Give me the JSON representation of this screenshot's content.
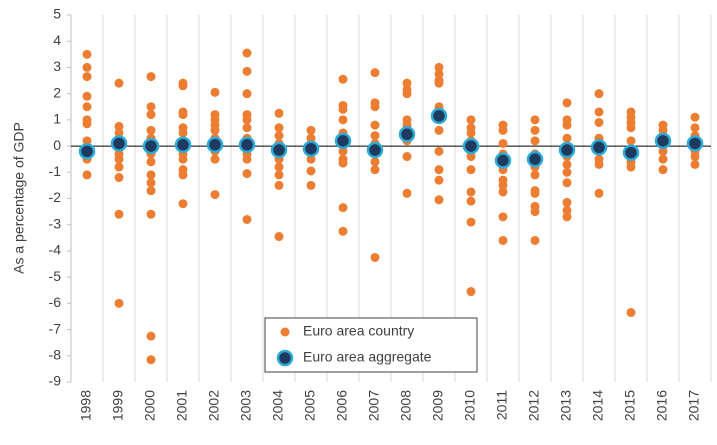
{
  "chart_data": {
    "type": "strip",
    "ylabel": "As a percentage of GDP",
    "categories": [
      "1998",
      "1999",
      "2000",
      "2001",
      "2002",
      "2003",
      "2004",
      "2005",
      "2006",
      "2007",
      "2008",
      "2009",
      "2010",
      "2011",
      "2012",
      "2013",
      "2014",
      "2015",
      "2016",
      "2017"
    ],
    "series": [
      {
        "name": "Euro area country",
        "color": "#ed7d31",
        "values": [
          [
            3.5,
            3.0,
            2.65,
            1.9,
            1.5,
            1.0,
            0.85,
            0.2,
            -0.1,
            -0.3,
            -0.5,
            -1.1
          ],
          [
            2.4,
            0.75,
            0.5,
            0.2,
            -0.1,
            -0.3,
            -0.5,
            -0.8,
            -1.2,
            -2.6,
            -6.0
          ],
          [
            2.65,
            1.5,
            1.2,
            0.6,
            0.3,
            0,
            -0.3,
            -0.6,
            -1.1,
            -1.4,
            -1.7,
            -2.6,
            -7.25,
            -8.15
          ],
          [
            2.4,
            2.3,
            1.3,
            1.2,
            0.7,
            0.5,
            0.2,
            0,
            -0.3,
            -0.5,
            -0.9,
            -1.1,
            -2.2
          ],
          [
            2.05,
            1.2,
            1.0,
            0.8,
            0.6,
            0.3,
            0.1,
            -0.2,
            -0.5,
            -1.85
          ],
          [
            3.55,
            2.85,
            2.0,
            1.2,
            1.0,
            0.7,
            0.3,
            0,
            -0.3,
            -0.5,
            -1.05,
            -2.8
          ],
          [
            1.25,
            0.7,
            0.4,
            0.1,
            -0.2,
            -0.5,
            -0.8,
            -1.1,
            -1.5,
            -3.45
          ],
          [
            0.6,
            0.3,
            0.1,
            -0.2,
            -0.5,
            -0.95,
            -1.5
          ],
          [
            2.55,
            1.55,
            1.4,
            1.0,
            0.5,
            0.2,
            -0.2,
            -0.5,
            -0.65,
            -2.35,
            -3.25
          ],
          [
            2.8,
            1.65,
            1.5,
            0.8,
            0.4,
            0.1,
            -0.3,
            -0.6,
            -0.9,
            -4.25
          ],
          [
            2.4,
            2.15,
            2.0,
            1.0,
            0.8,
            0.5,
            0.2,
            -0.4,
            -1.8
          ],
          [
            3.0,
            2.75,
            2.5,
            2.4,
            1.5,
            1.1,
            0.6,
            -0.2,
            -0.9,
            -1.3,
            -2.05
          ],
          [
            1.0,
            0.7,
            0.5,
            0.2,
            -0.1,
            -0.4,
            -0.9,
            -1.75,
            -2.1,
            -2.9,
            -5.55
          ],
          [
            0.8,
            0.6,
            0.1,
            -0.3,
            -0.6,
            -0.9,
            -1.3,
            -1.5,
            -1.75,
            -2.7,
            -3.6
          ],
          [
            1.0,
            0.6,
            0.2,
            -0.3,
            -0.8,
            -1.1,
            -1.7,
            -1.8,
            -2.3,
            -2.5,
            -3.6
          ],
          [
            1.65,
            1.0,
            0.8,
            0.3,
            0,
            -0.4,
            -0.7,
            -1.0,
            -1.4,
            -2.15,
            -2.45,
            -2.7
          ],
          [
            2.0,
            1.3,
            0.9,
            0.3,
            0.1,
            -0.2,
            -0.5,
            -0.7,
            -1.8
          ],
          [
            1.3,
            1.1,
            0.9,
            0.7,
            0.2,
            -0.3,
            -0.6,
            -0.8,
            -6.35
          ],
          [
            0.8,
            0.6,
            0.4,
            0.1,
            -0.2,
            -0.5,
            -0.9
          ],
          [
            1.1,
            0.7,
            0.4,
            0.1,
            -0.2,
            -0.4,
            -0.7
          ]
        ]
      },
      {
        "name": "Euro area aggregate",
        "color": "#1f3a5f",
        "edge_color": "#2eaad6",
        "values": [
          -0.2,
          0.1,
          0,
          0.05,
          0.05,
          0.05,
          -0.15,
          -0.1,
          0.2,
          -0.15,
          0.45,
          1.15,
          0,
          -0.55,
          -0.5,
          -0.15,
          -0.05,
          -0.25,
          0.2,
          0.1
        ]
      }
    ],
    "ylim": [
      -9,
      5
    ],
    "yticks": [
      -9,
      -8,
      -7,
      -6,
      -5,
      -4,
      -3,
      -2,
      -1,
      0,
      1,
      2,
      3,
      4,
      5
    ],
    "grid": true,
    "legend": "lower center"
  }
}
